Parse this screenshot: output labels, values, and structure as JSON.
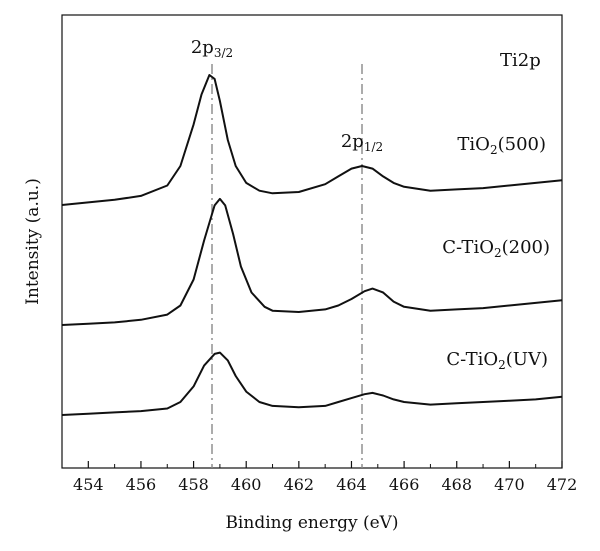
{
  "chart_data": {
    "type": "line",
    "title": "Ti2p",
    "xlabel": "Binding energy (eV)",
    "ylabel": "Intensity (a.u.)",
    "xlim": [
      453,
      472
    ],
    "x_ticks": [
      "454",
      "456",
      "458",
      "460",
      "462",
      "464",
      "466",
      "468",
      "470",
      "472"
    ],
    "y_ticks": [],
    "grid": false,
    "offset_stacked": true,
    "reference_lines": [
      {
        "x": 458.7,
        "label": "2p",
        "label_sub": "3/2",
        "style": "dash-dot",
        "color": "#888888"
      },
      {
        "x": 464.4,
        "label": "2p",
        "label_sub": "1/2",
        "style": "dash-dot",
        "color": "#888888"
      }
    ],
    "series": [
      {
        "name": "TiO2(500)",
        "label_main_1": "TiO",
        "label_sub": "2",
        "label_main_2": "(500)",
        "x": [
          453,
          454,
          455,
          456,
          457,
          457.5,
          458,
          458.3,
          458.6,
          458.8,
          459,
          459.3,
          459.6,
          460,
          460.5,
          461,
          462,
          463,
          463.5,
          464,
          464.4,
          464.8,
          465.2,
          465.6,
          466,
          467,
          468,
          469,
          470,
          471,
          472
        ],
        "y": [
          0.0,
          0.02,
          0.04,
          0.07,
          0.15,
          0.3,
          0.62,
          0.85,
          1.0,
          0.97,
          0.8,
          0.5,
          0.3,
          0.17,
          0.11,
          0.09,
          0.1,
          0.16,
          0.22,
          0.28,
          0.3,
          0.28,
          0.22,
          0.17,
          0.14,
          0.11,
          0.12,
          0.13,
          0.15,
          0.17,
          0.19
        ]
      },
      {
        "name": "C-TiO2(200)",
        "label_main_1": "C-TiO",
        "label_sub": "2",
        "label_main_2": "(200)",
        "x": [
          453,
          454,
          455,
          456,
          457,
          457.5,
          458,
          458.4,
          458.8,
          459,
          459.2,
          459.5,
          459.8,
          460.2,
          460.7,
          461,
          462,
          463,
          463.5,
          464,
          464.5,
          464.8,
          465.2,
          465.6,
          466,
          467,
          468,
          469,
          470,
          471,
          472
        ],
        "y": [
          0.0,
          0.01,
          0.02,
          0.04,
          0.08,
          0.15,
          0.35,
          0.65,
          0.92,
          0.97,
          0.92,
          0.7,
          0.45,
          0.25,
          0.14,
          0.11,
          0.1,
          0.12,
          0.15,
          0.2,
          0.26,
          0.28,
          0.25,
          0.18,
          0.14,
          0.11,
          0.12,
          0.13,
          0.15,
          0.17,
          0.19
        ]
      },
      {
        "name": "C-TiO2(UV)",
        "label_main_1": "C-TiO",
        "label_sub": "2",
        "label_main_2": "(UV)",
        "x": [
          453,
          454,
          455,
          456,
          457,
          457.5,
          458,
          458.4,
          458.8,
          459,
          459.3,
          459.6,
          460,
          460.5,
          461,
          462,
          463,
          463.5,
          464,
          464.5,
          464.8,
          465.2,
          465.6,
          466,
          467,
          468,
          469,
          470,
          471,
          472
        ],
        "y": [
          0.0,
          0.01,
          0.02,
          0.03,
          0.05,
          0.1,
          0.22,
          0.38,
          0.47,
          0.48,
          0.42,
          0.3,
          0.18,
          0.1,
          0.07,
          0.06,
          0.07,
          0.1,
          0.13,
          0.16,
          0.17,
          0.15,
          0.12,
          0.1,
          0.08,
          0.09,
          0.1,
          0.11,
          0.12,
          0.14
        ]
      }
    ]
  }
}
